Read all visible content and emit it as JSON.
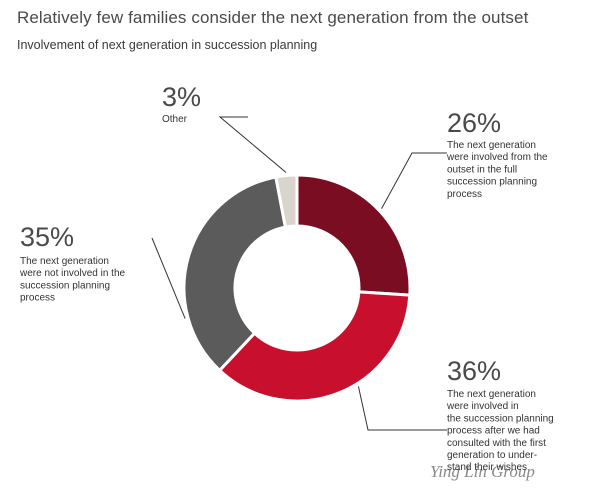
{
  "header": {
    "title": "Relatively few families consider the next generation from the outset",
    "subtitle": "Involvement of next generation in succession planning"
  },
  "watermark": "Ying Lin Group",
  "chart_data": {
    "type": "pie",
    "donut": true,
    "slices": [
      {
        "pct_label": "26%",
        "value": 26,
        "color": "#7a0d22",
        "lines": [
          "The next generation",
          "were involved from the",
          "outset in the full",
          "succession planning",
          "process"
        ]
      },
      {
        "pct_label": "36%",
        "value": 36,
        "color": "#c8102e",
        "lines": [
          "The next generation",
          "were involved in",
          "the succession planning",
          "process after we had",
          "consulted with the first",
          "generation to under-",
          "stand their wishes"
        ]
      },
      {
        "pct_label": "35%",
        "value": 35,
        "color": "#5b5b5b",
        "lines": [
          "The next generation",
          "were not involved in the",
          "succession planning",
          "process"
        ]
      },
      {
        "pct_label": "3%",
        "value": 3,
        "color": "#d9d5cc",
        "lines": [
          "Other"
        ]
      }
    ]
  }
}
